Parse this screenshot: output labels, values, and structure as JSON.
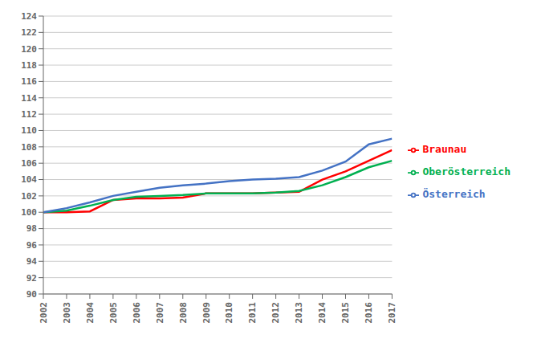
{
  "chart_data": {
    "type": "line",
    "x": [
      2002,
      2003,
      2004,
      2005,
      2006,
      2007,
      2008,
      2009,
      2010,
      2011,
      2012,
      2013,
      2014,
      2015,
      2016,
      2017
    ],
    "series": [
      {
        "name": "Braunau",
        "color": "#FF0000",
        "values": [
          100.0,
          100.0,
          100.1,
          101.5,
          101.7,
          101.7,
          101.8,
          102.3,
          102.3,
          102.3,
          102.4,
          102.5,
          104.0,
          105.0,
          106.3,
          107.6
        ]
      },
      {
        "name": "Oberösterreich",
        "color": "#00B050",
        "values": [
          100.0,
          100.2,
          100.8,
          101.5,
          101.9,
          102.0,
          102.1,
          102.3,
          102.3,
          102.3,
          102.4,
          102.6,
          103.3,
          104.3,
          105.5,
          106.3
        ]
      },
      {
        "name": "Österreich",
        "color": "#4472C4",
        "values": [
          100.0,
          100.5,
          101.2,
          102.0,
          102.5,
          103.0,
          103.3,
          103.5,
          103.8,
          104.0,
          104.1,
          104.3,
          105.1,
          106.2,
          108.3,
          109.0
        ]
      }
    ],
    "xlim": [
      2002,
      2017
    ],
    "xticks": [
      2002,
      2003,
      2004,
      2005,
      2006,
      2007,
      2008,
      2009,
      2010,
      2011,
      2012,
      2013,
      2014,
      2015,
      2016,
      2017
    ],
    "ylim": [
      90,
      124
    ],
    "yticks": [
      90,
      92,
      94,
      96,
      98,
      100,
      102,
      104,
      106,
      108,
      110,
      112,
      114,
      116,
      118,
      120,
      122,
      124
    ],
    "grid": true,
    "legend": "right"
  }
}
